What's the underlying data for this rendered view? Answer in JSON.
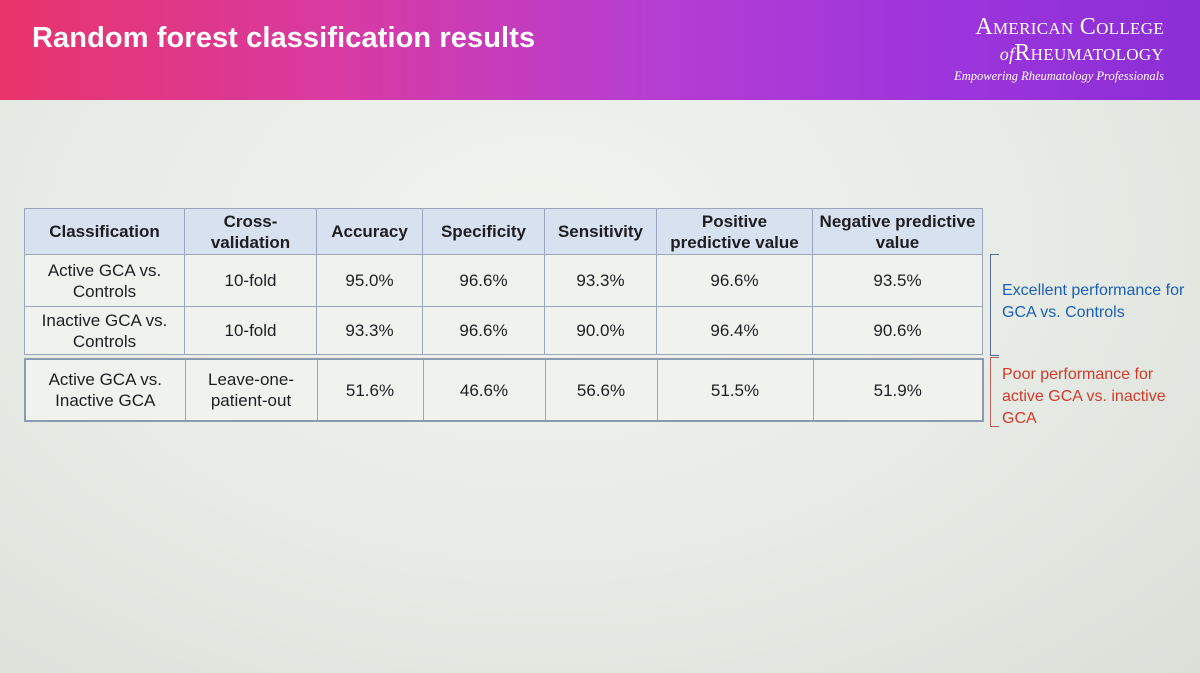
{
  "header": {
    "title": "Random forest classification results",
    "logo": {
      "line1": "American College",
      "line2_prefix": "of",
      "line2": "Rheumatology",
      "tagline": "Empowering Rheumatology Professionals"
    }
  },
  "table": {
    "columns": [
      "Classification",
      "Cross-validation",
      "Accuracy",
      "Specificity",
      "Sensitivity",
      "Positive predictive value",
      "Negative predictive value"
    ],
    "rows": [
      [
        "Active GCA vs. Controls",
        "10-fold",
        "95.0%",
        "96.6%",
        "93.3%",
        "96.6%",
        "93.5%"
      ],
      [
        "Inactive GCA vs. Controls",
        "10-fold",
        "93.3%",
        "96.6%",
        "90.0%",
        "96.4%",
        "90.6%"
      ]
    ],
    "row_separate": [
      "Active GCA vs. Inactive GCA",
      "Leave-one-patient-out",
      "51.6%",
      "46.6%",
      "56.6%",
      "51.5%",
      "51.9%"
    ]
  },
  "notes": {
    "controls": "Excellent performance for GCA vs. Controls",
    "inactive": "Poor performance for active GCA vs. inactive GCA"
  },
  "colors": {
    "header_start": "#e8346a",
    "header_end": "#8b2ed6",
    "note_blue": "#1b5fb6",
    "note_red": "#d23a2a",
    "table_header_bg": "#d7e1ef"
  }
}
